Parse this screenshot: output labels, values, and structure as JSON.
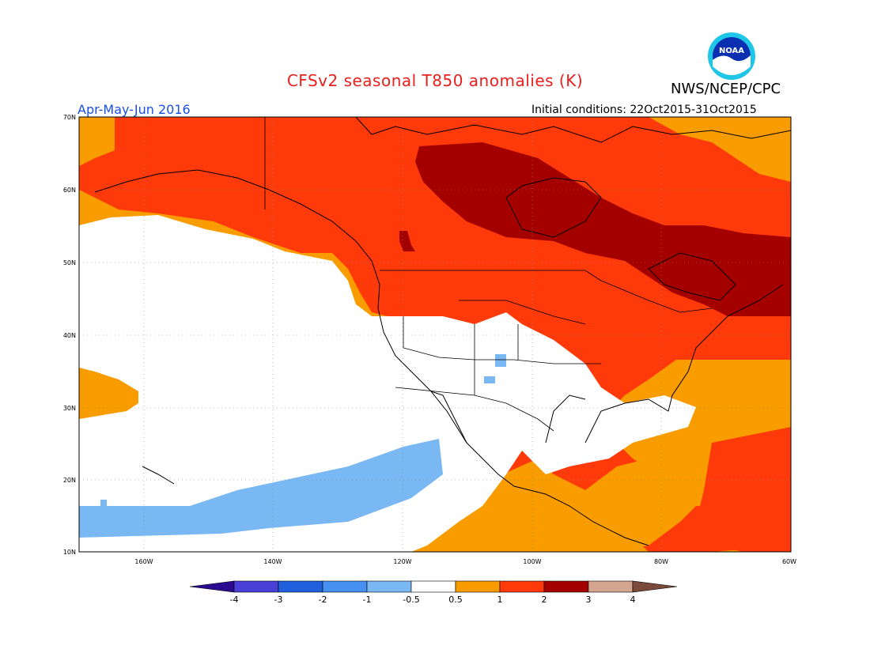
{
  "title": "CFSv2 seasonal T850 anomalies (K)",
  "credit": "NWS/NCEP/CPC",
  "logo_text": "NOAA",
  "period": "Apr-May-Jun 2016",
  "initial_conditions": "Initial conditions: 22Oct2015-31Oct2015",
  "map": {
    "lat_labels": [
      "70N",
      "60N",
      "50N",
      "40N",
      "30N",
      "20N",
      "10N"
    ],
    "lon_labels": [
      "160W",
      "140W",
      "120W",
      "100W",
      "80W",
      "60W"
    ],
    "region": "North America",
    "extent": {
      "lon": [
        -170,
        -60
      ],
      "lat": [
        10,
        70
      ]
    },
    "field_summary": "Warm anomalies (0.5 to 3 K) over Canada, Alaska, eastern US and Caribbean; near-zero over western/southwestern US and eastern Pacific; cool band (-1 to -0.5 K) southwest of Baja California"
  },
  "colorbar": {
    "labels": [
      "-4",
      "-3",
      "-2",
      "-1",
      "-0.5",
      "0.5",
      "1",
      "2",
      "3",
      "4"
    ],
    "colors": [
      "#2a0a8e",
      "#4a3fd6",
      "#2060dc",
      "#4590f0",
      "#7ab8f4",
      "#ffffff",
      "#f99c00",
      "#ff3a0a",
      "#a50000",
      "#d4a690",
      "#7a4a3a"
    ]
  }
}
